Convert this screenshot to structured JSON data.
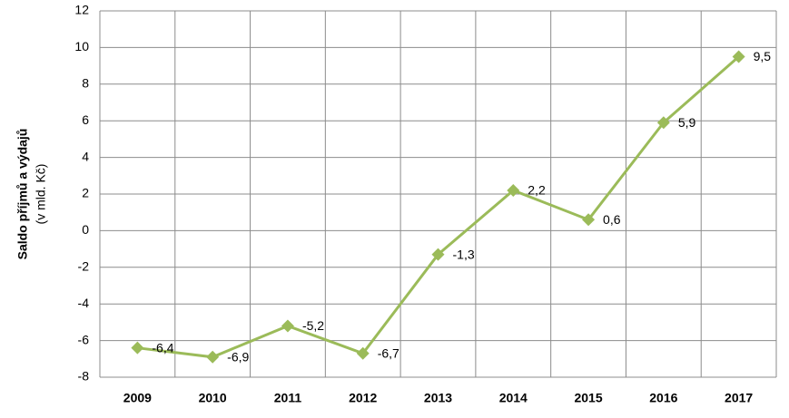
{
  "chart_data": {
    "type": "line",
    "ylabel": [
      "Saldo příjmů a výdajů",
      "(v mld. Kč)"
    ],
    "categories": [
      "2009",
      "2010",
      "2011",
      "2012",
      "2013",
      "2014",
      "2015",
      "2016",
      "2017"
    ],
    "values": [
      -6.4,
      -6.9,
      -5.2,
      -6.7,
      -1.3,
      2.2,
      0.6,
      5.9,
      9.5
    ],
    "value_labels": [
      "-6,4",
      "-6,9",
      "-5,2",
      "-6,7",
      "-1,3",
      "2,2",
      "0,6",
      "5,9",
      "9,5"
    ],
    "color": "#9bbb59",
    "ylim": [
      -8,
      12
    ],
    "yticks": [
      -8,
      -6,
      -4,
      -2,
      0,
      2,
      4,
      6,
      8,
      10,
      12
    ],
    "grid": true
  }
}
